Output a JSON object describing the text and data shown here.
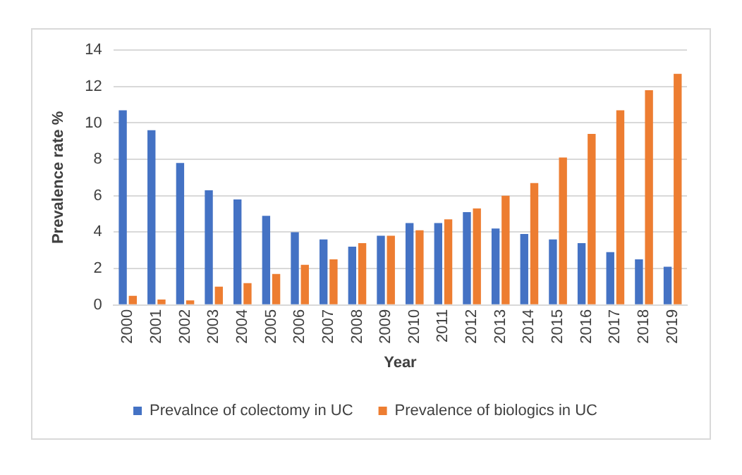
{
  "chart_data": {
    "type": "bar",
    "xlabel": "Year",
    "ylabel": "Prevalence rate %",
    "categories": [
      "2000",
      "2001",
      "2002",
      "2003",
      "2004",
      "2005",
      "2006",
      "2007",
      "2008",
      "2009",
      "2010",
      "2011",
      "2012",
      "2013",
      "2014",
      "2015",
      "2016",
      "2017",
      "2018",
      "2019"
    ],
    "series": [
      {
        "name": "Prevalnce of colectomy in UC",
        "color": "#4472c4",
        "values": [
          10.7,
          9.6,
          7.8,
          6.3,
          5.8,
          4.9,
          4.0,
          3.6,
          3.2,
          3.8,
          4.5,
          4.5,
          5.1,
          4.2,
          3.9,
          3.6,
          3.4,
          2.9,
          2.5,
          2.1
        ]
      },
      {
        "name": "Prevalence of biologics in UC",
        "color": "#ed7d31",
        "values": [
          0.5,
          0.3,
          0.25,
          1.0,
          1.2,
          1.7,
          2.2,
          2.5,
          3.4,
          3.8,
          4.1,
          4.7,
          5.3,
          6.0,
          6.7,
          8.1,
          9.4,
          10.7,
          11.8,
          12.7
        ]
      }
    ],
    "ylim": [
      0,
      14
    ],
    "yticks": [
      0,
      2,
      4,
      6,
      8,
      10,
      12,
      14
    ],
    "grid": "y",
    "legend": "bottom"
  }
}
